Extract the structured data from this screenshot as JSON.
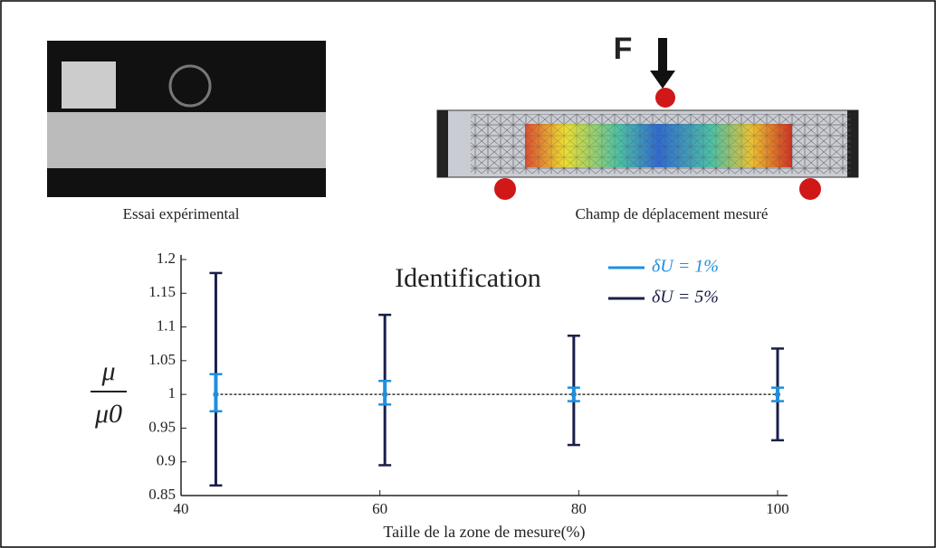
{
  "images": [
    {
      "caption": "Essai expérimental"
    },
    {
      "caption": "Champ de déplacement mesuré",
      "force_label": "F"
    }
  ],
  "chart_data": {
    "type": "errorbar",
    "title": "Identification",
    "x_label": "Taille de la zone de mesure(%)",
    "y_label_numerator": "μ",
    "y_label_denominator": "μ0",
    "x": [
      43.5,
      60.5,
      79.5,
      100
    ],
    "reference_line": 1,
    "series": [
      {
        "name": "δU = 5%",
        "color": "#1a1f4a",
        "values": [
          1,
          1,
          1,
          1
        ],
        "low": [
          0.865,
          0.895,
          0.925,
          0.932
        ],
        "high": [
          1.18,
          1.118,
          1.087,
          1.068
        ]
      },
      {
        "name": "δU = 1%",
        "color": "#1f8fdc",
        "values": [
          1,
          1,
          1,
          1
        ],
        "low": [
          0.975,
          0.985,
          0.99,
          0.99
        ],
        "high": [
          1.03,
          1.02,
          1.01,
          1.01
        ]
      }
    ],
    "xlim": [
      40,
      101
    ],
    "xticks": [
      40,
      60,
      80,
      100
    ],
    "ylim": [
      0.85,
      1.2
    ],
    "yticks": [
      0.85,
      0.9,
      0.95,
      1,
      1.05,
      1.1,
      1.15,
      1.2
    ]
  }
}
